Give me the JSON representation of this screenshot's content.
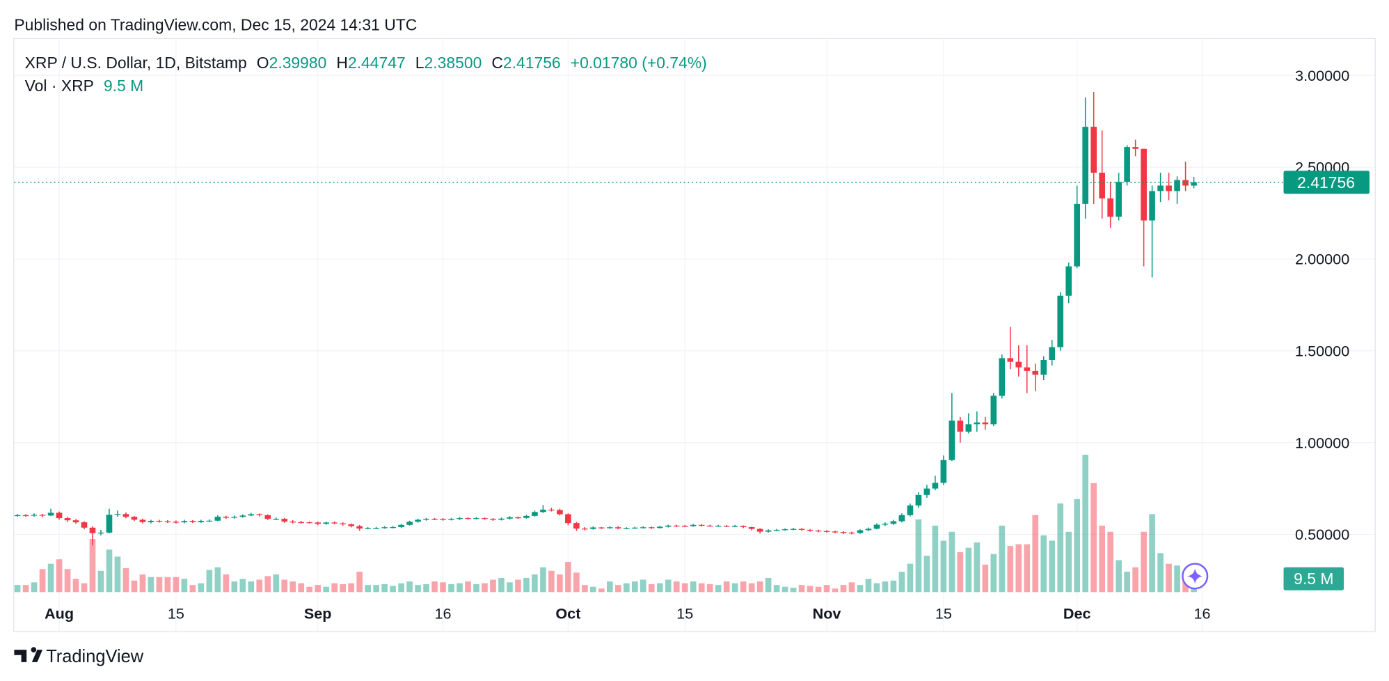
{
  "published": "Published on TradingView.com, Dec 15, 2024 14:31 UTC",
  "footer": {
    "brand": "TradingView"
  },
  "chart_data": {
    "type": "candlestick",
    "symbol": "XRP / U.S. Dollar, 1D, Bitstamp",
    "ohlc": [
      {
        "label": "O",
        "value": "2.39980"
      },
      {
        "label": "H",
        "value": "2.44747"
      },
      {
        "label": "L",
        "value": "2.38500"
      },
      {
        "label": "C",
        "value": "2.41756"
      }
    ],
    "change": "+0.01780 (+0.74%)",
    "volume_title": "Vol · XRP",
    "volume_label": "9.5 M",
    "up_color": "#089981",
    "down_color": "#f23645",
    "grid": true,
    "xlim": [
      -5.5,
      145.8
    ],
    "ylim": [
      0.186,
      3.203
    ],
    "vlim": [
      0,
      187.5
    ],
    "xticks": [
      {
        "value": 0,
        "label": "Aug"
      },
      {
        "value": 14,
        "label": "15"
      },
      {
        "value": 31,
        "label": "Sep"
      },
      {
        "value": 46,
        "label": "16"
      },
      {
        "value": 61,
        "label": "Oct"
      },
      {
        "value": 75,
        "label": "15"
      },
      {
        "value": 92,
        "label": "Nov"
      },
      {
        "value": 106,
        "label": "15"
      },
      {
        "value": 122,
        "label": "Dec"
      },
      {
        "value": 137,
        "label": "16"
      }
    ],
    "yticks": [
      {
        "value": 0.5,
        "label": "0.50000"
      },
      {
        "value": 1,
        "label": "1.00000"
      },
      {
        "value": 1.5,
        "label": "1.50000"
      },
      {
        "value": 2,
        "label": "2.00000"
      },
      {
        "value": 2.5,
        "label": "2.50000"
      },
      {
        "value": 3,
        "label": "3.00000"
      }
    ],
    "x": [
      -5,
      -4,
      -3,
      -2,
      -1,
      0,
      1,
      2,
      3,
      4,
      5,
      6,
      7,
      8,
      9,
      10,
      11,
      12,
      13,
      14,
      15,
      16,
      17,
      18,
      19,
      20,
      21,
      22,
      23,
      24,
      25,
      26,
      27,
      28,
      29,
      30,
      31,
      32,
      33,
      34,
      35,
      36,
      37,
      38,
      39,
      40,
      41,
      42,
      43,
      44,
      45,
      46,
      47,
      48,
      49,
      50,
      51,
      52,
      53,
      54,
      55,
      56,
      57,
      58,
      59,
      60,
      61,
      62,
      63,
      64,
      65,
      66,
      67,
      68,
      69,
      70,
      71,
      72,
      73,
      74,
      75,
      76,
      77,
      78,
      79,
      80,
      81,
      82,
      83,
      84,
      85,
      86,
      87,
      88,
      89,
      90,
      91,
      92,
      93,
      94,
      95,
      96,
      97,
      98,
      99,
      100,
      101,
      102,
      103,
      104,
      105,
      106,
      107,
      108,
      109,
      110,
      111,
      112,
      113,
      114,
      115,
      116,
      117,
      118,
      119,
      120,
      121,
      122,
      123,
      124,
      125,
      126,
      127,
      128,
      129,
      130,
      131,
      132,
      133,
      134,
      135,
      136
    ],
    "open": [
      0.6,
      0.605,
      0.603,
      0.607,
      0.603,
      0.618,
      0.589,
      0.577,
      0.566,
      0.537,
      0.507,
      0.51,
      0.607,
      0.611,
      0.596,
      0.58,
      0.567,
      0.574,
      0.571,
      0.569,
      0.566,
      0.573,
      0.567,
      0.574,
      0.575,
      0.596,
      0.591,
      0.596,
      0.603,
      0.61,
      0.605,
      0.585,
      0.585,
      0.57,
      0.567,
      0.566,
      0.565,
      0.558,
      0.565,
      0.56,
      0.555,
      0.545,
      0.532,
      0.535,
      0.536,
      0.539,
      0.54,
      0.552,
      0.569,
      0.58,
      0.585,
      0.584,
      0.581,
      0.584,
      0.589,
      0.586,
      0.589,
      0.585,
      0.58,
      0.586,
      0.593,
      0.59,
      0.601,
      0.622,
      0.635,
      0.633,
      0.61,
      0.562,
      0.532,
      0.53,
      0.538,
      0.534,
      0.539,
      0.533,
      0.534,
      0.537,
      0.539,
      0.535,
      0.542,
      0.548,
      0.546,
      0.545,
      0.552,
      0.548,
      0.547,
      0.547,
      0.545,
      0.546,
      0.54,
      0.53,
      0.515,
      0.522,
      0.525,
      0.528,
      0.53,
      0.525,
      0.521,
      0.518,
      0.516,
      0.513,
      0.51,
      0.508,
      0.523,
      0.531,
      0.553,
      0.558,
      0.572,
      0.605,
      0.658,
      0.715,
      0.75,
      0.781,
      0.905,
      1.12,
      1.06,
      1.1,
      1.11,
      1.1,
      1.255,
      1.46,
      1.44,
      1.41,
      1.39,
      1.37,
      1.45,
      1.52,
      1.8,
      1.96,
      2.3,
      2.72,
      2.47,
      2.33,
      2.23,
      2.42,
      2.61,
      2.6,
      2.21,
      2.37,
      2.4,
      2.37,
      2.43,
      2.3998
    ],
    "high": [
      0.612,
      0.611,
      0.615,
      0.612,
      0.64,
      0.625,
      0.596,
      0.584,
      0.572,
      0.545,
      0.525,
      0.64,
      0.63,
      0.62,
      0.6,
      0.586,
      0.58,
      0.58,
      0.578,
      0.576,
      0.58,
      0.578,
      0.58,
      0.582,
      0.604,
      0.602,
      0.603,
      0.61,
      0.618,
      0.614,
      0.609,
      0.593,
      0.59,
      0.578,
      0.574,
      0.571,
      0.57,
      0.57,
      0.571,
      0.566,
      0.56,
      0.552,
      0.54,
      0.541,
      0.545,
      0.546,
      0.558,
      0.575,
      0.586,
      0.59,
      0.59,
      0.589,
      0.59,
      0.595,
      0.594,
      0.595,
      0.592,
      0.589,
      0.592,
      0.6,
      0.598,
      0.607,
      0.63,
      0.66,
      0.645,
      0.64,
      0.615,
      0.568,
      0.54,
      0.544,
      0.541,
      0.545,
      0.545,
      0.539,
      0.542,
      0.545,
      0.543,
      0.548,
      0.553,
      0.553,
      0.552,
      0.558,
      0.556,
      0.553,
      0.552,
      0.551,
      0.552,
      0.549,
      0.543,
      0.534,
      0.528,
      0.53,
      0.533,
      0.536,
      0.535,
      0.53,
      0.526,
      0.524,
      0.521,
      0.518,
      0.515,
      0.528,
      0.538,
      0.56,
      0.566,
      0.58,
      0.615,
      0.668,
      0.73,
      0.77,
      0.82,
      0.93,
      1.27,
      1.14,
      1.16,
      1.17,
      1.14,
      1.27,
      1.48,
      1.63,
      1.53,
      1.53,
      1.43,
      1.47,
      1.56,
      1.82,
      1.98,
      2.4,
      2.88,
      2.91,
      2.7,
      2.42,
      2.47,
      2.62,
      2.65,
      2.6,
      2.4,
      2.47,
      2.47,
      2.45,
      2.53,
      2.44747
    ],
    "low": [
      0.596,
      0.595,
      0.597,
      0.594,
      0.6,
      0.58,
      0.568,
      0.558,
      0.528,
      0.44,
      0.495,
      0.505,
      0.596,
      0.588,
      0.572,
      0.56,
      0.56,
      0.565,
      0.562,
      0.559,
      0.561,
      0.562,
      0.563,
      0.568,
      0.572,
      0.585,
      0.586,
      0.591,
      0.6,
      0.598,
      0.579,
      0.578,
      0.563,
      0.56,
      0.558,
      0.56,
      0.55,
      0.553,
      0.555,
      0.548,
      0.538,
      0.52,
      0.528,
      0.529,
      0.531,
      0.533,
      0.535,
      0.548,
      0.564,
      0.575,
      0.578,
      0.575,
      0.576,
      0.579,
      0.581,
      0.582,
      0.58,
      0.574,
      0.576,
      0.581,
      0.585,
      0.586,
      0.597,
      0.617,
      0.625,
      0.603,
      0.55,
      0.52,
      0.522,
      0.526,
      0.53,
      0.531,
      0.528,
      0.528,
      0.53,
      0.532,
      0.53,
      0.532,
      0.538,
      0.54,
      0.54,
      0.542,
      0.543,
      0.542,
      0.542,
      0.54,
      0.54,
      0.534,
      0.522,
      0.505,
      0.51,
      0.518,
      0.52,
      0.523,
      0.52,
      0.515,
      0.512,
      0.51,
      0.507,
      0.502,
      0.5,
      0.503,
      0.518,
      0.528,
      0.545,
      0.552,
      0.565,
      0.598,
      0.645,
      0.7,
      0.74,
      0.77,
      0.9,
      1.0,
      1.05,
      1.06,
      1.07,
      1.09,
      1.24,
      1.4,
      1.36,
      1.27,
      1.28,
      1.34,
      1.42,
      1.5,
      1.76,
      1.95,
      2.22,
      2.3,
      2.22,
      2.17,
      2.21,
      2.4,
      2.56,
      1.96,
      1.9,
      2.31,
      2.32,
      2.3,
      2.37,
      2.385
    ],
    "close": [
      0.605,
      0.603,
      0.607,
      0.603,
      0.618,
      0.589,
      0.577,
      0.566,
      0.537,
      0.507,
      0.51,
      0.607,
      0.611,
      0.596,
      0.58,
      0.567,
      0.574,
      0.571,
      0.569,
      0.566,
      0.573,
      0.567,
      0.574,
      0.575,
      0.596,
      0.591,
      0.596,
      0.603,
      0.61,
      0.605,
      0.585,
      0.585,
      0.57,
      0.567,
      0.566,
      0.565,
      0.558,
      0.565,
      0.56,
      0.555,
      0.545,
      0.532,
      0.535,
      0.536,
      0.539,
      0.54,
      0.552,
      0.569,
      0.58,
      0.585,
      0.584,
      0.581,
      0.584,
      0.589,
      0.586,
      0.589,
      0.585,
      0.58,
      0.586,
      0.593,
      0.59,
      0.601,
      0.622,
      0.635,
      0.633,
      0.61,
      0.562,
      0.532,
      0.53,
      0.538,
      0.534,
      0.539,
      0.533,
      0.534,
      0.537,
      0.539,
      0.535,
      0.542,
      0.548,
      0.546,
      0.545,
      0.552,
      0.548,
      0.547,
      0.547,
      0.545,
      0.546,
      0.54,
      0.53,
      0.515,
      0.522,
      0.525,
      0.528,
      0.53,
      0.525,
      0.521,
      0.518,
      0.516,
      0.513,
      0.51,
      0.508,
      0.523,
      0.531,
      0.553,
      0.558,
      0.572,
      0.605,
      0.658,
      0.715,
      0.75,
      0.781,
      0.905,
      1.12,
      1.06,
      1.1,
      1.11,
      1.1,
      1.255,
      1.46,
      1.44,
      1.41,
      1.39,
      1.37,
      1.45,
      1.52,
      1.8,
      1.96,
      2.3,
      2.72,
      2.47,
      2.33,
      2.23,
      2.42,
      2.61,
      2.6,
      2.21,
      2.37,
      2.4,
      2.37,
      2.43,
      2.3998,
      2.41756
    ],
    "volume": [
      2.4,
      2.4,
      3.3,
      7.8,
      9.6,
      11.1,
      7.8,
      4.5,
      3,
      18,
      7.2,
      14.4,
      12,
      8.1,
      3.9,
      6,
      5.1,
      5.1,
      5.1,
      5.1,
      4.5,
      2.4,
      3,
      7.5,
      8.4,
      6,
      3.6,
      4.5,
      3.6,
      4.2,
      5.4,
      6,
      4.2,
      3.6,
      3,
      1.8,
      2.4,
      1.8,
      3,
      2.7,
      3,
      6.9,
      2.4,
      2.4,
      2.7,
      2.1,
      3,
      3.6,
      2.4,
      2.7,
      3.6,
      3.3,
      2.7,
      3,
      3.6,
      2.7,
      3,
      4.2,
      4.8,
      3.3,
      4.2,
      4.8,
      6,
      8.4,
      7.2,
      6,
      10.2,
      6.6,
      2.4,
      1.8,
      1.2,
      3.6,
      2.4,
      3,
      3.6,
      4.2,
      2.7,
      3,
      4.2,
      3.6,
      3,
      3.6,
      3,
      2.7,
      2.4,
      3.6,
      3,
      3.6,
      3,
      3.6,
      4.8,
      2.4,
      1.8,
      1.5,
      2.4,
      2.1,
      1.8,
      2.4,
      1.2,
      2.4,
      3.3,
      2.4,
      4.5,
      3,
      3.6,
      3.9,
      6.9,
      9.6,
      24.6,
      12.3,
      22.5,
      17.4,
      20.4,
      13.5,
      15,
      16.8,
      9.3,
      12.9,
      22.5,
      15.6,
      16.2,
      16.2,
      26.1,
      19.2,
      17.4,
      30,
      20.4,
      31.5,
      46.5,
      36.9,
      22.5,
      20.4,
      10.8,
      6.9,
      8.4,
      20.4,
      26.4,
      13.2,
      9.6,
      9,
      6.9,
      9.5
    ]
  }
}
